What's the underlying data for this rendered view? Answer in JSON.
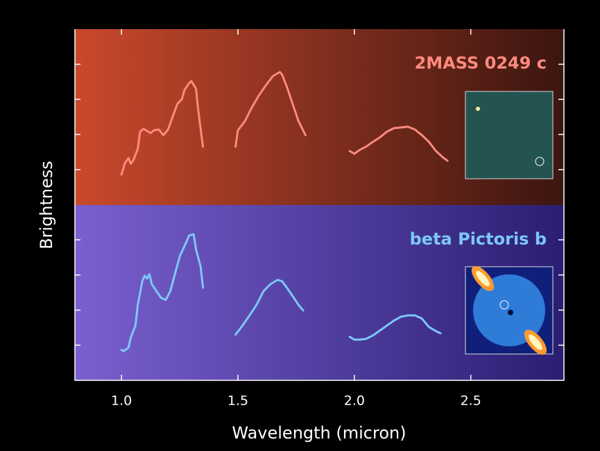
{
  "chart_data": {
    "type": "line",
    "xlabel": "Wavelength (micron)",
    "ylabel": "Brightness",
    "xlim": [
      0.8,
      2.9
    ],
    "xticks": [
      {
        "value": 1.0,
        "label": "1.0"
      },
      {
        "value": 1.5,
        "label": "1.5"
      },
      {
        "value": 2.0,
        "label": "2.0"
      },
      {
        "value": 2.5,
        "label": "2.5"
      }
    ],
    "ylim": [
      0,
      10
    ],
    "yticks": [
      1,
      2,
      3,
      4,
      6,
      7,
      8,
      9
    ],
    "series": [
      {
        "name": "2MASS 0249 c",
        "color": "#ff8a7e",
        "x": [
          1.0,
          1.015,
          1.03,
          1.04,
          1.05,
          1.07,
          1.08,
          1.095,
          1.11,
          1.125,
          1.14,
          1.16,
          1.18,
          1.2,
          1.22,
          1.24,
          1.26,
          1.27,
          1.29,
          1.3,
          1.32,
          1.33,
          1.35,
          null,
          1.49,
          1.5,
          1.53,
          1.56,
          1.59,
          1.62,
          1.65,
          1.68,
          1.69,
          1.71,
          1.74,
          1.76,
          1.79,
          null,
          1.98,
          2.0,
          2.02,
          2.05,
          2.08,
          2.11,
          2.14,
          2.17,
          2.2,
          2.23,
          2.26,
          2.29,
          2.32,
          2.35,
          2.38,
          2.4
        ],
        "values": [
          5.86,
          6.19,
          6.33,
          6.17,
          6.25,
          6.59,
          7.08,
          7.16,
          7.1,
          7.04,
          7.12,
          7.14,
          6.98,
          7.14,
          7.51,
          7.87,
          8.01,
          8.26,
          8.46,
          8.52,
          8.3,
          7.67,
          6.65,
          null,
          6.65,
          7.12,
          7.38,
          7.77,
          8.11,
          8.4,
          8.66,
          8.78,
          8.7,
          8.36,
          7.77,
          7.38,
          6.98,
          null,
          6.53,
          6.45,
          6.55,
          6.65,
          6.79,
          6.92,
          7.08,
          7.18,
          7.2,
          7.22,
          7.14,
          6.98,
          6.79,
          6.53,
          6.35,
          6.25
        ]
      },
      {
        "name": "beta Pictoris b",
        "color": "#7cc8f8",
        "x": [
          1.0,
          1.01,
          1.03,
          1.04,
          1.06,
          1.07,
          1.09,
          1.1,
          1.11,
          1.12,
          1.13,
          1.15,
          1.17,
          1.19,
          1.21,
          1.23,
          1.25,
          1.28,
          1.29,
          1.31,
          1.32,
          1.34,
          1.35,
          null,
          1.49,
          1.52,
          1.55,
          1.58,
          1.61,
          1.64,
          1.67,
          1.69,
          1.71,
          1.74,
          1.76,
          1.78,
          null,
          1.98,
          2.0,
          2.02,
          2.05,
          2.08,
          2.11,
          2.14,
          2.17,
          2.2,
          2.23,
          2.26,
          2.29,
          2.32,
          2.35,
          2.37
        ],
        "values": [
          0.87,
          0.83,
          0.93,
          1.22,
          1.56,
          2.15,
          2.84,
          2.98,
          2.9,
          3.02,
          2.74,
          2.54,
          2.35,
          2.29,
          2.54,
          3.04,
          3.53,
          3.96,
          4.12,
          4.16,
          3.73,
          3.23,
          2.64,
          null,
          1.3,
          1.56,
          1.85,
          2.15,
          2.54,
          2.74,
          2.86,
          2.82,
          2.64,
          2.35,
          2.15,
          1.99,
          null,
          1.24,
          1.16,
          1.16,
          1.18,
          1.28,
          1.42,
          1.56,
          1.7,
          1.81,
          1.85,
          1.85,
          1.76,
          1.52,
          1.4,
          1.34
        ]
      }
    ]
  }
}
